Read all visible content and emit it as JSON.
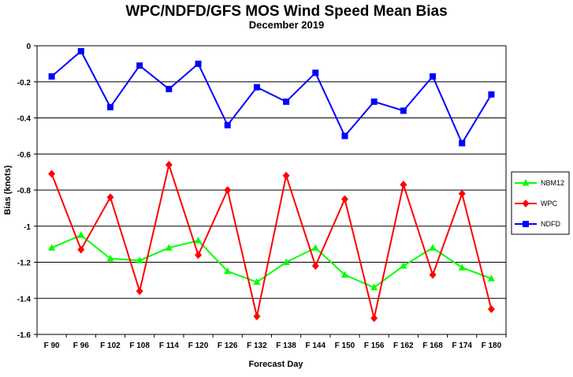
{
  "chart_data": {
    "type": "line",
    "title": "WPC/NDFD/GFS MOS Wind Speed Mean Bias",
    "subtitle": "December 2019",
    "xlabel": "Forecast Day",
    "ylabel": "Bias (knots)",
    "ylim": [
      -1.6,
      0
    ],
    "yticks": [
      0,
      -0.2,
      -0.4,
      -0.6,
      -0.8,
      -1,
      -1.2,
      -1.4,
      -1.6
    ],
    "ytick_labels": [
      "0",
      "-0.2",
      "-0.4",
      "-0.6",
      "-0.8",
      "-1",
      "-1.2",
      "-1.4",
      "-1.6"
    ],
    "grid": "horizontal",
    "legend_position": "right",
    "categories": [
      "F 90",
      "F 96",
      "F 102",
      "F 108",
      "F 114",
      "F 120",
      "F 126",
      "F 132",
      "F 138",
      "F 144",
      "F 150",
      "F 156",
      "F 162",
      "F 168",
      "F 174",
      "F 180"
    ],
    "series": [
      {
        "name": "NBM12",
        "color": "#00ff00",
        "marker": "triangle",
        "values": [
          -1.12,
          -1.05,
          -1.18,
          -1.19,
          -1.12,
          -1.08,
          -1.25,
          -1.31,
          -1.2,
          -1.12,
          -1.27,
          -1.34,
          -1.22,
          -1.12,
          -1.23,
          -1.29
        ]
      },
      {
        "name": "WPC",
        "color": "#ff0000",
        "marker": "diamond",
        "values": [
          -0.71,
          -1.13,
          -0.84,
          -1.36,
          -0.66,
          -1.16,
          -0.8,
          -1.5,
          -0.72,
          -1.22,
          -0.85,
          -1.51,
          -0.77,
          -1.27,
          -0.82,
          -1.46
        ]
      },
      {
        "name": "NDFD",
        "color": "#0000ff",
        "marker": "square",
        "values": [
          -0.17,
          -0.03,
          -0.34,
          -0.11,
          -0.24,
          -0.1,
          -0.44,
          -0.23,
          -0.31,
          -0.15,
          -0.5,
          -0.31,
          -0.36,
          -0.17,
          -0.54,
          -0.27
        ]
      }
    ]
  }
}
